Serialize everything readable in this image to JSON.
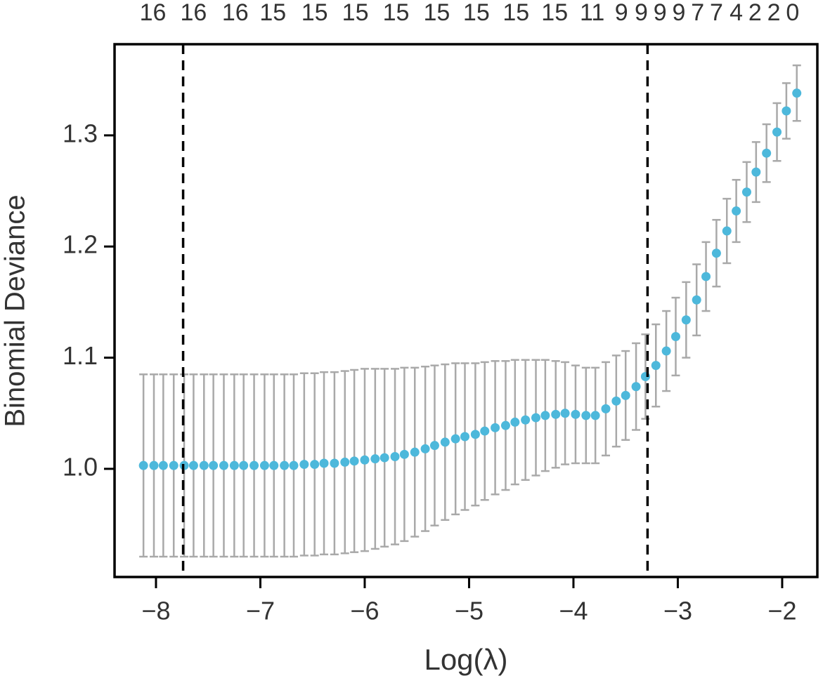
{
  "chart_data": {
    "type": "errorbar",
    "xlabel": "Log(λ)",
    "ylabel": "Binomial Deviance",
    "xlim": [
      -8.397,
      -1.663
    ],
    "ylim": [
      0.9027,
      1.382
    ],
    "xticks": [
      {
        "value": -8,
        "label": "−8"
      },
      {
        "value": -7,
        "label": "−7"
      },
      {
        "value": -6,
        "label": "−6"
      },
      {
        "value": -5,
        "label": "−5"
      },
      {
        "value": -4,
        "label": "−4"
      },
      {
        "value": -3,
        "label": "−3"
      },
      {
        "value": -2,
        "label": "−2"
      }
    ],
    "yticks": [
      {
        "value": 1,
        "label": "1.0"
      },
      1.1,
      1.2,
      1.3
    ],
    "top_ticks": [
      {
        "value": -8.03,
        "label": "16"
      },
      {
        "value": -7.64,
        "label": "16"
      },
      {
        "value": -7.24,
        "label": "16"
      },
      {
        "value": -6.88,
        "label": "15"
      },
      {
        "value": -6.48,
        "label": "15"
      },
      {
        "value": -6.09,
        "label": "15"
      },
      {
        "value": -5.7,
        "label": "15"
      },
      {
        "value": -5.31,
        "label": "15"
      },
      {
        "value": -4.93,
        "label": "15"
      },
      {
        "value": -4.55,
        "label": "15"
      },
      {
        "value": -4.18,
        "label": "15"
      },
      {
        "value": -3.82,
        "label": "11"
      },
      {
        "value": -3.54,
        "label": "9"
      },
      {
        "value": -3.35,
        "label": "9"
      },
      {
        "value": -3.17,
        "label": "9"
      },
      {
        "value": -2.99,
        "label": "9"
      },
      {
        "value": -2.81,
        "label": "7"
      },
      {
        "value": -2.63,
        "label": "7"
      },
      {
        "value": -2.44,
        "label": "4"
      },
      {
        "value": -2.26,
        "label": "2"
      },
      {
        "value": -2.08,
        "label": "2"
      },
      {
        "value": -1.9,
        "label": "0"
      }
    ],
    "vlines": [
      -7.74,
      -3.29
    ],
    "grid": false,
    "x": [
      -8.12,
      -8.02,
      -7.93,
      -7.83,
      -7.73,
      -7.64,
      -7.54,
      -7.45,
      -7.35,
      -7.25,
      -7.16,
      -7.06,
      -6.96,
      -6.87,
      -6.77,
      -6.68,
      -6.58,
      -6.48,
      -6.39,
      -6.29,
      -6.19,
      -6.1,
      -6.0,
      -5.9,
      -5.81,
      -5.71,
      -5.62,
      -5.52,
      -5.42,
      -5.33,
      -5.23,
      -5.13,
      -5.04,
      -4.94,
      -4.85,
      -4.75,
      -4.65,
      -4.56,
      -4.46,
      -4.36,
      -4.27,
      -4.17,
      -4.08,
      -3.98,
      -3.88,
      -3.79,
      -3.69,
      -3.59,
      -3.5,
      -3.4,
      -3.31,
      -3.21,
      -3.11,
      -3.02,
      -2.92,
      -2.82,
      -2.73,
      -2.63,
      -2.53,
      -2.44,
      -2.34,
      -2.25,
      -2.15,
      -2.05,
      -1.96,
      -1.86
    ],
    "series": [
      {
        "color": "#4db8db",
        "error_color": "#a9a9a9",
        "values": [
          1.003,
          1.003,
          1.003,
          1.003,
          1.003,
          1.003,
          1.003,
          1.003,
          1.003,
          1.003,
          1.003,
          1.003,
          1.003,
          1.003,
          1.003,
          1.003,
          1.004,
          1.004,
          1.005,
          1.005,
          1.006,
          1.007,
          1.008,
          1.009,
          1.01,
          1.011,
          1.013,
          1.015,
          1.018,
          1.021,
          1.024,
          1.027,
          1.029,
          1.031,
          1.034,
          1.037,
          1.039,
          1.042,
          1.044,
          1.046,
          1.048,
          1.049,
          1.05,
          1.049,
          1.048,
          1.048,
          1.054,
          1.061,
          1.066,
          1.074,
          1.083,
          1.093,
          1.106,
          1.119,
          1.134,
          1.152,
          1.173,
          1.194,
          1.214,
          1.232,
          1.249,
          1.267,
          1.284,
          1.303,
          1.322,
          1.338
        ],
        "errors": [
          0.082,
          0.082,
          0.082,
          0.082,
          0.082,
          0.082,
          0.082,
          0.082,
          0.082,
          0.082,
          0.082,
          0.082,
          0.082,
          0.082,
          0.082,
          0.082,
          0.082,
          0.082,
          0.082,
          0.082,
          0.082,
          0.082,
          0.082,
          0.081,
          0.08,
          0.079,
          0.078,
          0.076,
          0.074,
          0.072,
          0.07,
          0.068,
          0.066,
          0.064,
          0.062,
          0.06,
          0.058,
          0.056,
          0.054,
          0.052,
          0.05,
          0.048,
          0.046,
          0.044,
          0.043,
          0.043,
          0.042,
          0.041,
          0.04,
          0.039,
          0.038,
          0.037,
          0.036,
          0.035,
          0.034,
          0.032,
          0.031,
          0.03,
          0.029,
          0.028,
          0.027,
          0.027,
          0.026,
          0.026,
          0.025,
          0.025
        ]
      }
    ]
  }
}
